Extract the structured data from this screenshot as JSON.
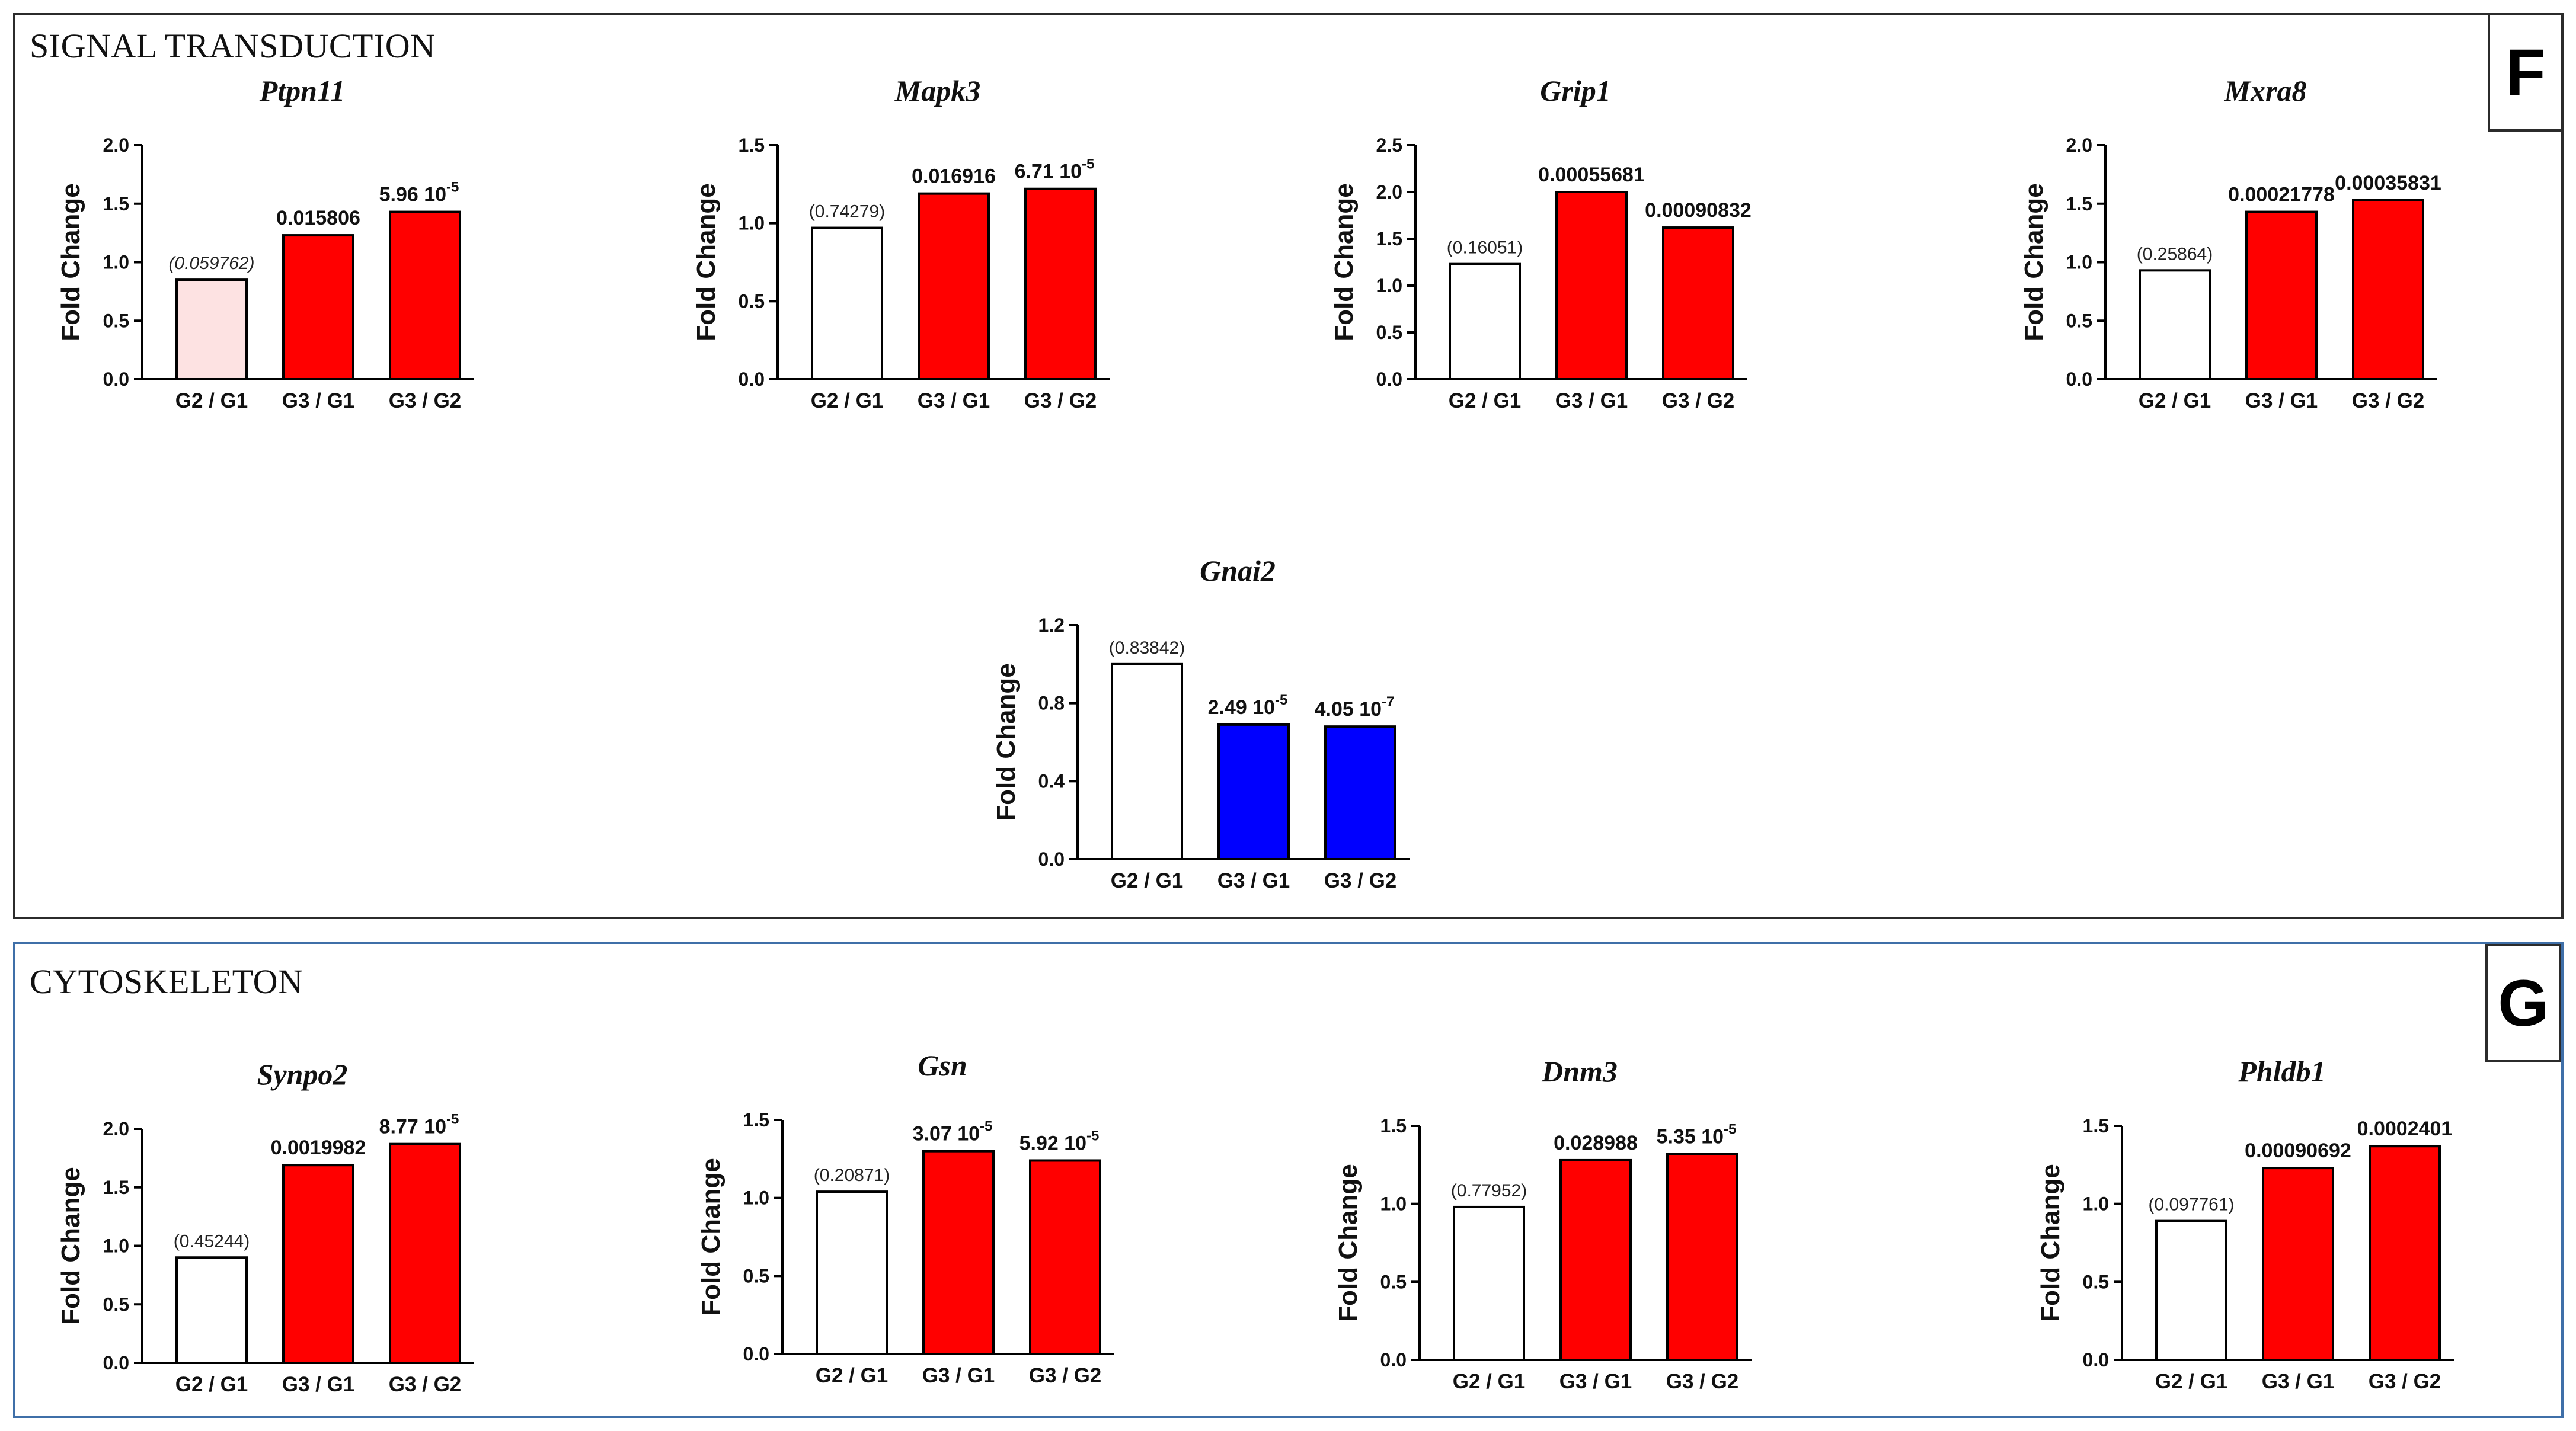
{
  "sections": {
    "signal": {
      "title": "SIGNAL TRANSDUCTION",
      "letter": "F"
    },
    "cyto": {
      "title": "CYTOSKELETON",
      "letter": "G"
    }
  },
  "colors": {
    "up": "#ff0000",
    "down": "#0000ff",
    "light": "#fde2e2",
    "none": "#ffffff",
    "border": "#000000"
  },
  "chart_data": [
    {
      "id": "ptpn11",
      "type": "bar",
      "title": "Ptpn11",
      "ylabel": "Fold Change",
      "ylim": [
        0,
        2.0
      ],
      "yticks": [
        {
          "v": 0,
          "t": "0.0"
        },
        {
          "v": 0.5,
          "t": "0.5"
        },
        {
          "v": 1.0,
          "t": "1.0"
        },
        {
          "v": 1.5,
          "t": "1.5"
        },
        {
          "v": 2.0,
          "t": "2.0"
        }
      ],
      "categories": [
        "G2 / G1",
        "G3 / G1",
        "G3 / G2"
      ],
      "values": [
        0.85,
        1.23,
        1.43
      ],
      "fills": [
        "light",
        "up",
        "up"
      ],
      "labels": [
        {
          "text": "(0.059762)",
          "exp": "",
          "sig": false,
          "italic": true
        },
        {
          "text": "0.015806",
          "exp": "",
          "sig": true
        },
        {
          "text": "5.96 10",
          "exp": "-5",
          "sig": true
        }
      ]
    },
    {
      "id": "mapk3",
      "type": "bar",
      "title": "Mapk3",
      "ylabel": "Fold Change",
      "ylim": [
        0,
        1.5
      ],
      "yticks": [
        {
          "v": 0,
          "t": "0.0"
        },
        {
          "v": 0.5,
          "t": "0.5"
        },
        {
          "v": 1.0,
          "t": "1.0"
        },
        {
          "v": 1.5,
          "t": "1.5"
        }
      ],
      "categories": [
        "G2 / G1",
        "G3 / G1",
        "G3 / G2"
      ],
      "values": [
        0.97,
        1.19,
        1.22
      ],
      "fills": [
        "none",
        "up",
        "up"
      ],
      "labels": [
        {
          "text": "(0.74279)",
          "exp": "",
          "sig": false
        },
        {
          "text": "0.016916",
          "exp": "",
          "sig": true
        },
        {
          "text": "6.71 10",
          "exp": "-5",
          "sig": true
        }
      ]
    },
    {
      "id": "grip1",
      "type": "bar",
      "title": "Grip1",
      "ylabel": "Fold Change",
      "ylim": [
        0,
        2.5
      ],
      "yticks": [
        {
          "v": 0,
          "t": "0.0"
        },
        {
          "v": 0.5,
          "t": "0.5"
        },
        {
          "v": 1.0,
          "t": "1.0"
        },
        {
          "v": 1.5,
          "t": "1.5"
        },
        {
          "v": 2.0,
          "t": "2.0"
        },
        {
          "v": 2.5,
          "t": "2.5"
        }
      ],
      "categories": [
        "G2 / G1",
        "G3 / G1",
        "G3 / G2"
      ],
      "values": [
        1.23,
        2.0,
        1.62
      ],
      "fills": [
        "none",
        "up",
        "up"
      ],
      "labels": [
        {
          "text": "(0.16051)",
          "exp": "",
          "sig": false
        },
        {
          "text": "0.00055681",
          "exp": "",
          "sig": true
        },
        {
          "text": "0.00090832",
          "exp": "",
          "sig": true
        }
      ]
    },
    {
      "id": "mxra8",
      "type": "bar",
      "title": "Mxra8",
      "ylabel": "Fold Change",
      "ylim": [
        0,
        2.0
      ],
      "yticks": [
        {
          "v": 0,
          "t": "0.0"
        },
        {
          "v": 0.5,
          "t": "0.5"
        },
        {
          "v": 1.0,
          "t": "1.0"
        },
        {
          "v": 1.5,
          "t": "1.5"
        },
        {
          "v": 2.0,
          "t": "2.0"
        }
      ],
      "categories": [
        "G2 / G1",
        "G3 / G1",
        "G3 / G2"
      ],
      "values": [
        0.93,
        1.43,
        1.53
      ],
      "fills": [
        "none",
        "up",
        "up"
      ],
      "labels": [
        {
          "text": "(0.25864)",
          "exp": "",
          "sig": false
        },
        {
          "text": "0.00021778",
          "exp": "",
          "sig": true
        },
        {
          "text": "0.00035831",
          "exp": "",
          "sig": true
        }
      ]
    },
    {
      "id": "gnai2",
      "type": "bar",
      "title": "Gnai2",
      "ylabel": "Fold Change",
      "ylim": [
        0,
        1.2
      ],
      "yticks": [
        {
          "v": 0,
          "t": "0.0"
        },
        {
          "v": 0.4,
          "t": "0.4"
        },
        {
          "v": 0.8,
          "t": "0.8"
        },
        {
          "v": 1.2,
          "t": "1.2"
        }
      ],
      "categories": [
        "G2 / G1",
        "G3 / G1",
        "G3 / G2"
      ],
      "values": [
        1.0,
        0.69,
        0.68
      ],
      "fills": [
        "none",
        "down",
        "down"
      ],
      "labels": [
        {
          "text": "(0.83842)",
          "exp": "",
          "sig": false
        },
        {
          "text": "2.49 10",
          "exp": "-5",
          "sig": true
        },
        {
          "text": "4.05 10",
          "exp": "-7",
          "sig": true
        }
      ]
    },
    {
      "id": "synpo2",
      "type": "bar",
      "title": "Synpo2",
      "ylabel": "Fold Change",
      "ylim": [
        0,
        2.0
      ],
      "yticks": [
        {
          "v": 0,
          "t": "0.0"
        },
        {
          "v": 0.5,
          "t": "0.5"
        },
        {
          "v": 1.0,
          "t": "1.0"
        },
        {
          "v": 1.5,
          "t": "1.5"
        },
        {
          "v": 2.0,
          "t": "2.0"
        }
      ],
      "categories": [
        "G2 / G1",
        "G3 / G1",
        "G3 / G2"
      ],
      "values": [
        0.9,
        1.69,
        1.87
      ],
      "fills": [
        "none",
        "up",
        "up"
      ],
      "labels": [
        {
          "text": "(0.45244)",
          "exp": "",
          "sig": false
        },
        {
          "text": "0.0019982",
          "exp": "",
          "sig": true
        },
        {
          "text": "8.77 10",
          "exp": "-5",
          "sig": true
        }
      ]
    },
    {
      "id": "gsn",
      "type": "bar",
      "title": "Gsn",
      "ylabel": "Fold Change",
      "ylim": [
        0,
        1.5
      ],
      "yticks": [
        {
          "v": 0,
          "t": "0.0"
        },
        {
          "v": 0.5,
          "t": "0.5"
        },
        {
          "v": 1.0,
          "t": "1.0"
        },
        {
          "v": 1.5,
          "t": "1.5"
        }
      ],
      "categories": [
        "G2 / G1",
        "G3 / G1",
        "G3 / G2"
      ],
      "values": [
        1.04,
        1.3,
        1.24
      ],
      "fills": [
        "none",
        "up",
        "up"
      ],
      "labels": [
        {
          "text": "(0.20871)",
          "exp": "",
          "sig": false
        },
        {
          "text": "3.07 10",
          "exp": "-5",
          "sig": true
        },
        {
          "text": "5.92 10",
          "exp": "-5",
          "sig": true
        }
      ]
    },
    {
      "id": "dnm3",
      "type": "bar",
      "title": "Dnm3",
      "ylabel": "Fold Change",
      "ylim": [
        0,
        1.5
      ],
      "yticks": [
        {
          "v": 0,
          "t": "0.0"
        },
        {
          "v": 0.5,
          "t": "0.5"
        },
        {
          "v": 1.0,
          "t": "1.0"
        },
        {
          "v": 1.5,
          "t": "1.5"
        }
      ],
      "categories": [
        "G2 / G1",
        "G3 / G1",
        "G3 / G2"
      ],
      "values": [
        0.98,
        1.28,
        1.32
      ],
      "fills": [
        "none",
        "up",
        "up"
      ],
      "labels": [
        {
          "text": "(0.77952)",
          "exp": "",
          "sig": false
        },
        {
          "text": "0.028988",
          "exp": "",
          "sig": true
        },
        {
          "text": "5.35 10",
          "exp": "-5",
          "sig": true
        }
      ]
    },
    {
      "id": "phldb1",
      "type": "bar",
      "title": "Phldb1",
      "ylabel": "Fold Change",
      "ylim": [
        0,
        1.5
      ],
      "yticks": [
        {
          "v": 0,
          "t": "0.0"
        },
        {
          "v": 0.5,
          "t": "0.5"
        },
        {
          "v": 1.0,
          "t": "1.0"
        },
        {
          "v": 1.5,
          "t": "1.5"
        }
      ],
      "categories": [
        "G2 / G1",
        "G3 / G1",
        "G3 / G2"
      ],
      "values": [
        0.89,
        1.23,
        1.37
      ],
      "fills": [
        "none",
        "up",
        "up"
      ],
      "labels": [
        {
          "text": "(0.097761)",
          "exp": "",
          "sig": false
        },
        {
          "text": "0.00090692",
          "exp": "",
          "sig": true
        },
        {
          "text": "0.0002401",
          "exp": "",
          "sig": true
        }
      ]
    }
  ]
}
